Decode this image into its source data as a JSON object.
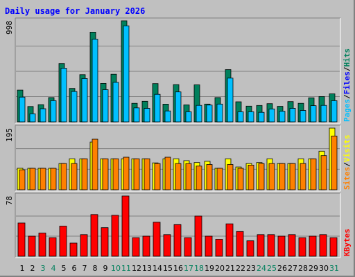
{
  "title": "Daily usage for January 2026",
  "chart_data": {
    "type": "bar",
    "title": "Daily usage for January 2026",
    "categories": [
      "1",
      "2",
      "3",
      "4",
      "5",
      "6",
      "7",
      "8",
      "9",
      "10",
      "11",
      "12",
      "13",
      "14",
      "15",
      "16",
      "17",
      "18",
      "19",
      "20",
      "21",
      "22",
      "23",
      "24",
      "25",
      "26",
      "27",
      "28",
      "29",
      "30",
      "31"
    ],
    "weekend_days": [
      "3",
      "4",
      "10",
      "11",
      "17",
      "18",
      "24",
      "25",
      "31"
    ],
    "colors": {
      "hits": "#00805c",
      "files": "#00c0ff",
      "visits": "#ffff00",
      "sites": "#ff8000",
      "kbytes": "#ff0000",
      "title": "#0000ff",
      "weekday_label": "#000000",
      "weekend_label": "#00805c",
      "panel_bg": "#c0c0c0"
    },
    "panels": [
      {
        "id": "top",
        "max_label": "998",
        "ylim": [
          0,
          998
        ],
        "legend": [
          {
            "text": "Pages",
            "color": "#00c0ff"
          },
          {
            "text": "/",
            "color": "#000000"
          },
          {
            "text": "Files",
            "color": "#0000ff"
          },
          {
            "text": "/",
            "color": "#000000"
          },
          {
            "text": "Hits",
            "color": "#00805c"
          }
        ],
        "series": [
          {
            "name": "Hits",
            "color": "#00805c",
            "values": [
              314,
              152,
              170,
              240,
              576,
              330,
              466,
              886,
              380,
              470,
              998,
              183,
              203,
              378,
              175,
              368,
              168,
              366,
              176,
              240,
              516,
              198,
              155,
              162,
              180,
              153,
              200,
              183,
              238,
              250,
              277
            ]
          },
          {
            "name": "Files",
            "color": "#00c0ff",
            "values": [
              245,
              80,
              130,
              210,
              530,
              300,
              428,
              816,
              318,
              390,
              948,
              138,
              133,
              272,
              108,
              296,
              100,
              163,
              166,
              176,
              432,
              100,
              100,
              94,
              128,
              105,
              134,
              113,
              160,
              163,
              209
            ]
          }
        ]
      },
      {
        "id": "middle",
        "max_label": "195",
        "ylim": [
          0,
          195
        ],
        "legend": [
          {
            "text": "Sites",
            "color": "#ff8000"
          },
          {
            "text": "/",
            "color": "#000000"
          },
          {
            "text": "Visits",
            "color": "#ffff00"
          }
        ],
        "series": [
          {
            "name": "Visits",
            "color": "#ffff00",
            "values": [
              68,
              68,
              68,
              68,
              83,
              98,
              98,
              151,
              98,
              98,
              98,
              98,
              98,
              85,
              98,
              98,
              92,
              86,
              90,
              68,
              98,
              72,
              83,
              86,
              98,
              83,
              83,
              98,
              98,
              122,
              195
            ]
          },
          {
            "name": "Sites",
            "color": "#ff8000",
            "values": [
              63,
              68,
              68,
              68,
              83,
              83,
              98,
              160,
              98,
              98,
              103,
              98,
              98,
              83,
              103,
              83,
              83,
              75,
              80,
              68,
              80,
              68,
              78,
              83,
              83,
              83,
              83,
              83,
              98,
              108,
              170
            ]
          }
        ]
      },
      {
        "id": "bottom",
        "max_label": "78",
        "ylim": [
          0,
          78
        ],
        "legend": [
          {
            "text": "KBytes",
            "color": "#ff0000"
          }
        ],
        "series": [
          {
            "name": "KBytes",
            "color": "#ff0000",
            "values": [
              43,
              26,
              30,
              24,
              39,
              17,
              28,
              54,
              37,
              53,
              78,
              24,
              26,
              44,
              28,
              41,
              24,
              52,
              26,
              22,
              42,
              32,
              20,
              28,
              28,
              26,
              28,
              24,
              26,
              28,
              24
            ]
          }
        ]
      }
    ]
  }
}
